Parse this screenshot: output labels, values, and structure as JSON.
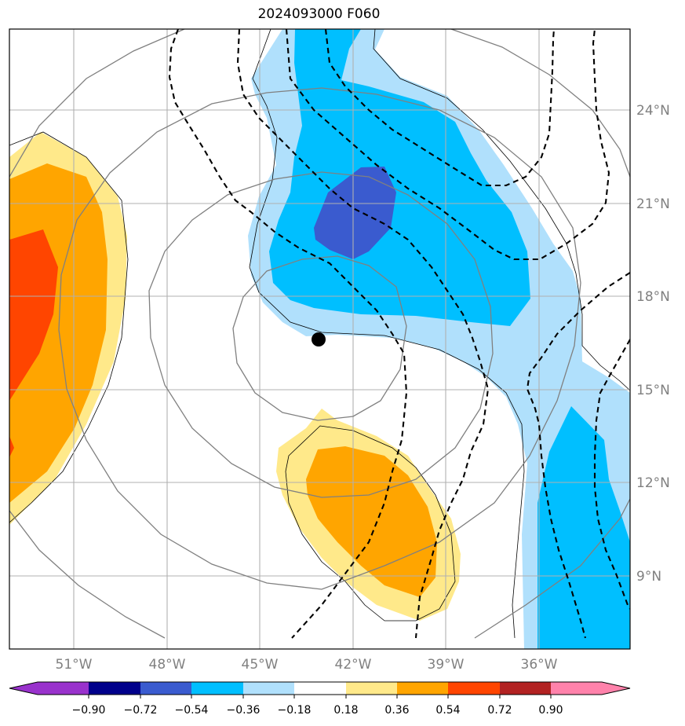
{
  "title": "2024093000 F060",
  "axes": {
    "lon_ticks": [
      "51°W",
      "48°W",
      "45°W",
      "42°W",
      "39°W",
      "36°W"
    ],
    "lat_ticks": [
      "24°N",
      "21°N",
      "18°N",
      "15°N",
      "12°N",
      "9°N"
    ],
    "tick_label_color": "#808080"
  },
  "storm_center": {
    "lon": -43.0,
    "lat": 16.6,
    "marker": "filled-circle"
  },
  "colorbar": {
    "levels": [
      "−0.90",
      "−0.72",
      "−0.54",
      "−0.36",
      "−0.18",
      "0.18",
      "0.36",
      "0.54",
      "0.72",
      "0.90"
    ],
    "colors": [
      "#9932cc",
      "#00008b",
      "#3a5bcf",
      "#00bfff",
      "#b0e0fc",
      "#ffffff",
      "#ffe98a",
      "#ffa500",
      "#ff4500",
      "#b22222",
      "#ff82ab"
    ]
  }
}
